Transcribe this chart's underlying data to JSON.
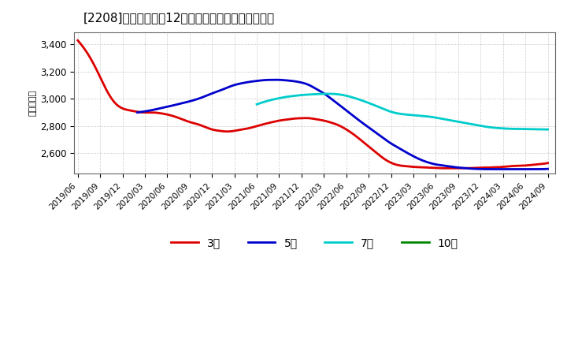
{
  "title": "[2208]　当期純利益12か月移動合計の平均値の推移",
  "ylabel": "（百万円）",
  "ylim": [
    2450,
    3490
  ],
  "yticks": [
    2600,
    2800,
    3000,
    3200,
    3400
  ],
  "background_color": "#ffffff",
  "plot_bg_color": "#ffffff",
  "grid_color": "#aaaaaa",
  "title_fontsize": 11,
  "series": {
    "3year": {
      "color": "#dd0000",
      "label": "3年",
      "x": [
        0,
        1,
        2,
        3,
        4,
        5,
        6,
        7,
        8,
        9,
        10,
        11,
        12,
        13,
        14,
        15,
        16,
        17,
        18,
        19,
        20,
        21,
        22,
        23,
        24,
        25,
        26,
        27,
        28,
        29,
        30,
        31,
        32,
        33,
        34,
        35,
        36,
        37,
        38,
        39,
        40,
        41,
        42,
        43,
        44,
        45,
        46,
        47,
        48,
        49,
        50,
        51,
        52,
        53,
        54,
        55,
        56,
        57,
        58,
        59,
        60,
        61,
        62,
        63
      ],
      "y": [
        3430,
        3360,
        3270,
        3160,
        3050,
        2970,
        2930,
        2915,
        2905,
        2900,
        2900,
        2895,
        2885,
        2870,
        2850,
        2830,
        2815,
        2795,
        2775,
        2765,
        2760,
        2765,
        2775,
        2785,
        2800,
        2815,
        2828,
        2840,
        2848,
        2855,
        2858,
        2858,
        2850,
        2840,
        2825,
        2805,
        2775,
        2738,
        2695,
        2650,
        2605,
        2562,
        2530,
        2512,
        2505,
        2500,
        2497,
        2494,
        2492,
        2490,
        2490,
        2490,
        2490,
        2492,
        2494,
        2495,
        2497,
        2500,
        2505,
        2508,
        2510,
        2515,
        2520,
        2528
      ]
    },
    "5year": {
      "color": "#0000cc",
      "label": "5年",
      "x": [
        8,
        9,
        10,
        11,
        12,
        13,
        14,
        15,
        16,
        17,
        18,
        19,
        20,
        21,
        22,
        23,
        24,
        25,
        26,
        27,
        28,
        29,
        30,
        31,
        32,
        33,
        34,
        35,
        36,
        37,
        38,
        39,
        40,
        41,
        42,
        43,
        44,
        45,
        46,
        47,
        48,
        49,
        50,
        51,
        52,
        53,
        54,
        55,
        56,
        57,
        58,
        59,
        60,
        61,
        62,
        63
      ],
      "y": [
        2900,
        2908,
        2918,
        2930,
        2942,
        2955,
        2968,
        2982,
        2998,
        3018,
        3040,
        3060,
        3082,
        3102,
        3115,
        3125,
        3132,
        3138,
        3140,
        3140,
        3136,
        3130,
        3120,
        3102,
        3072,
        3040,
        3000,
        2958,
        2915,
        2872,
        2830,
        2790,
        2750,
        2710,
        2672,
        2640,
        2608,
        2578,
        2552,
        2532,
        2518,
        2510,
        2502,
        2495,
        2490,
        2486,
        2484,
        2483,
        2483,
        2483,
        2483,
        2483,
        2483,
        2483,
        2483,
        2485
      ]
    },
    "7year": {
      "color": "#00cccc",
      "label": "7年",
      "x": [
        24,
        25,
        26,
        27,
        28,
        29,
        30,
        31,
        32,
        33,
        34,
        35,
        36,
        37,
        38,
        39,
        40,
        41,
        42,
        43,
        44,
        45,
        46,
        47,
        48,
        49,
        50,
        51,
        52,
        53,
        54,
        55,
        56,
        57,
        58,
        59,
        60,
        61,
        62,
        63
      ],
      "y": [
        2960,
        2978,
        2993,
        3005,
        3015,
        3022,
        3028,
        3032,
        3035,
        3037,
        3037,
        3033,
        3023,
        3008,
        2990,
        2970,
        2948,
        2925,
        2905,
        2892,
        2885,
        2880,
        2875,
        2870,
        2862,
        2852,
        2842,
        2832,
        2822,
        2812,
        2802,
        2793,
        2787,
        2783,
        2780,
        2779,
        2778,
        2777,
        2776,
        2775
      ]
    },
    "10year": {
      "color": "#008800",
      "label": "10年",
      "x": [],
      "y": []
    }
  },
  "x_labels": [
    "2019/06",
    "2019/09",
    "2019/12",
    "2020/03",
    "2020/06",
    "2020/09",
    "2020/12",
    "2021/03",
    "2021/06",
    "2021/09",
    "2021/12",
    "2022/03",
    "2022/06",
    "2022/09",
    "2022/12",
    "2023/03",
    "2023/06",
    "2023/09",
    "2023/12",
    "2024/03",
    "2024/06",
    "2024/09"
  ],
  "x_tick_positions": [
    0,
    3,
    6,
    9,
    12,
    15,
    18,
    21,
    24,
    27,
    30,
    33,
    36,
    39,
    42,
    45,
    48,
    51,
    54,
    57,
    60,
    63
  ]
}
